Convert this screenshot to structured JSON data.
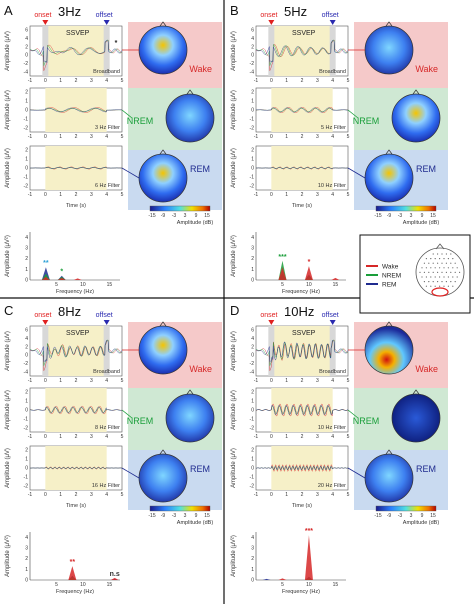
{
  "colors": {
    "wake": "#d62828",
    "nrem": "#1a9e3a",
    "rem": "#1f2b8f",
    "filter_label": "#2a9fd6",
    "onset": "#e02020",
    "offset": "#2a2ab0",
    "stim_window": "#f6f0c8",
    "wake_bg": "#f5c9c9",
    "nrem_bg": "#cfe8d3",
    "rem_bg": "#c9daf0"
  },
  "shared": {
    "onset": "onset",
    "offset": "offset",
    "ssvep": "SSVEP",
    "broadband": "Broadband",
    "ylabel_amp": "Amplitude (μV)",
    "ylabel_spec": "Amplitude (μV²)",
    "xlabel_time": "Time (s)",
    "xlabel_freq": "Frequency (Hz)",
    "wake": "Wake",
    "nrem": "NREM",
    "rem": "REM",
    "colorbar_label": "Amplitude (dB)",
    "colorbar_ticks": [
      "-15",
      "-9",
      "-3",
      "3",
      "9",
      "15"
    ],
    "time_ticks": [
      "-1",
      "0",
      "1",
      "2",
      "3",
      "4",
      "5"
    ],
    "raw_yticks": [
      "6",
      "4",
      "2",
      "0",
      "-2",
      "-4"
    ],
    "filt_yticks": [
      "2",
      "1",
      "0",
      "-1",
      "-2"
    ],
    "spec_yticks": [
      "4",
      "3",
      "2",
      "1",
      "0"
    ]
  },
  "legend": {
    "items": [
      {
        "label": "Wake",
        "color": "#d62828"
      },
      {
        "label": "NREM",
        "color": "#1a9e3a"
      },
      {
        "label": "REM",
        "color": "#1f2b8f"
      }
    ]
  },
  "panels": [
    {
      "id": "A",
      "letter": "A",
      "title": "3Hz",
      "filter1": "3 Hz Filter",
      "filter2": "6 Hz Filter",
      "asterisk": "*",
      "spec_xticks": [
        "5",
        "10",
        "15"
      ],
      "spec_stars": [
        {
          "text": "**",
          "color": "#2a9fd6",
          "f": 3
        },
        {
          "text": "*",
          "color": "#1a9e3a",
          "f": 6
        }
      ]
    },
    {
      "id": "B",
      "letter": "B",
      "title": "5Hz",
      "filter1": "5 Hz Filter",
      "filter2": "10 Hz Filter",
      "asterisk": "",
      "spec_xticks": [
        "5",
        "10",
        "15"
      ],
      "spec_stars": [
        {
          "text": "***",
          "color": "#1a9e3a",
          "f": 5
        },
        {
          "text": "*",
          "color": "#d62828",
          "f": 10
        }
      ]
    },
    {
      "id": "C",
      "letter": "C",
      "title": "8Hz",
      "filter1": "8 Hz Filter",
      "filter2": "16 Hz Filter",
      "asterisk": "",
      "spec_xticks": [
        "5",
        "10",
        "15"
      ],
      "spec_stars": [
        {
          "text": "**",
          "color": "#d62828",
          "f": 8
        },
        {
          "text": "n.s",
          "color": "#333333",
          "f": 16
        }
      ]
    },
    {
      "id": "D",
      "letter": "D",
      "title": "10Hz",
      "filter1": "10 Hz Filter",
      "filter2": "20 Hz Filter",
      "asterisk": "",
      "spec_xticks": [
        "5",
        "10",
        "15"
      ],
      "spec_stars": [
        {
          "text": "***",
          "color": "#d62828",
          "f": 10
        }
      ]
    }
  ],
  "chart_data": [
    {
      "type": "area",
      "panel": "A",
      "xlabel": "Frequency (Hz)",
      "ylabel": "Amplitude (μV²)",
      "xlim": [
        0,
        17
      ],
      "ylim": [
        0,
        4.5
      ],
      "series": [
        {
          "name": "Wake",
          "peaks": [
            {
              "f": 3,
              "amp": 0.3
            },
            {
              "f": 6,
              "amp": 0.2
            },
            {
              "f": 9,
              "amp": 0.15
            }
          ]
        },
        {
          "name": "NREM",
          "peaks": [
            {
              "f": 3,
              "amp": 0.6
            },
            {
              "f": 6,
              "amp": 0.3
            }
          ]
        },
        {
          "name": "REM",
          "peaks": [
            {
              "f": 3,
              "amp": 1.2
            },
            {
              "f": 6,
              "amp": 0.4
            }
          ]
        }
      ]
    },
    {
      "type": "area",
      "panel": "B",
      "xlabel": "Frequency (Hz)",
      "ylabel": "Amplitude (μV²)",
      "xlim": [
        0,
        17
      ],
      "ylim": [
        0,
        4.5
      ],
      "series": [
        {
          "name": "Wake",
          "peaks": [
            {
              "f": 5,
              "amp": 1.2
            },
            {
              "f": 10,
              "amp": 1.3
            },
            {
              "f": 15,
              "amp": 0.2
            }
          ]
        },
        {
          "name": "NREM",
          "peaks": [
            {
              "f": 5,
              "amp": 1.8
            },
            {
              "f": 10,
              "amp": 0.4
            }
          ]
        },
        {
          "name": "REM",
          "peaks": [
            {
              "f": 5,
              "amp": 0.6
            },
            {
              "f": 10,
              "amp": 0.5
            }
          ]
        }
      ]
    },
    {
      "type": "area",
      "panel": "C",
      "xlabel": "Frequency (Hz)",
      "ylabel": "Amplitude (μV²)",
      "xlim": [
        0,
        17
      ],
      "ylim": [
        0,
        4.5
      ],
      "series": [
        {
          "name": "Wake",
          "peaks": [
            {
              "f": 8,
              "amp": 1.3
            },
            {
              "f": 16,
              "amp": 0.2
            }
          ]
        },
        {
          "name": "NREM",
          "peaks": [
            {
              "f": 8,
              "amp": 0.3
            }
          ]
        },
        {
          "name": "REM",
          "peaks": [
            {
              "f": 8,
              "amp": 0.4
            },
            {
              "f": 16,
              "amp": 0.1
            }
          ]
        }
      ]
    },
    {
      "type": "area",
      "panel": "D",
      "xlabel": "Frequency (Hz)",
      "ylabel": "Amplitude (μV²)",
      "xlim": [
        0,
        17
      ],
      "ylim": [
        0,
        4.5
      ],
      "series": [
        {
          "name": "Wake",
          "peaks": [
            {
              "f": 10,
              "amp": 4.2
            },
            {
              "f": 5,
              "amp": 0.15
            }
          ]
        },
        {
          "name": "NREM",
          "peaks": [
            {
              "f": 10,
              "amp": 0.2
            }
          ]
        },
        {
          "name": "REM",
          "peaks": [
            {
              "f": 10,
              "amp": 0.3
            },
            {
              "f": 2,
              "amp": 0.1
            }
          ]
        }
      ]
    }
  ]
}
